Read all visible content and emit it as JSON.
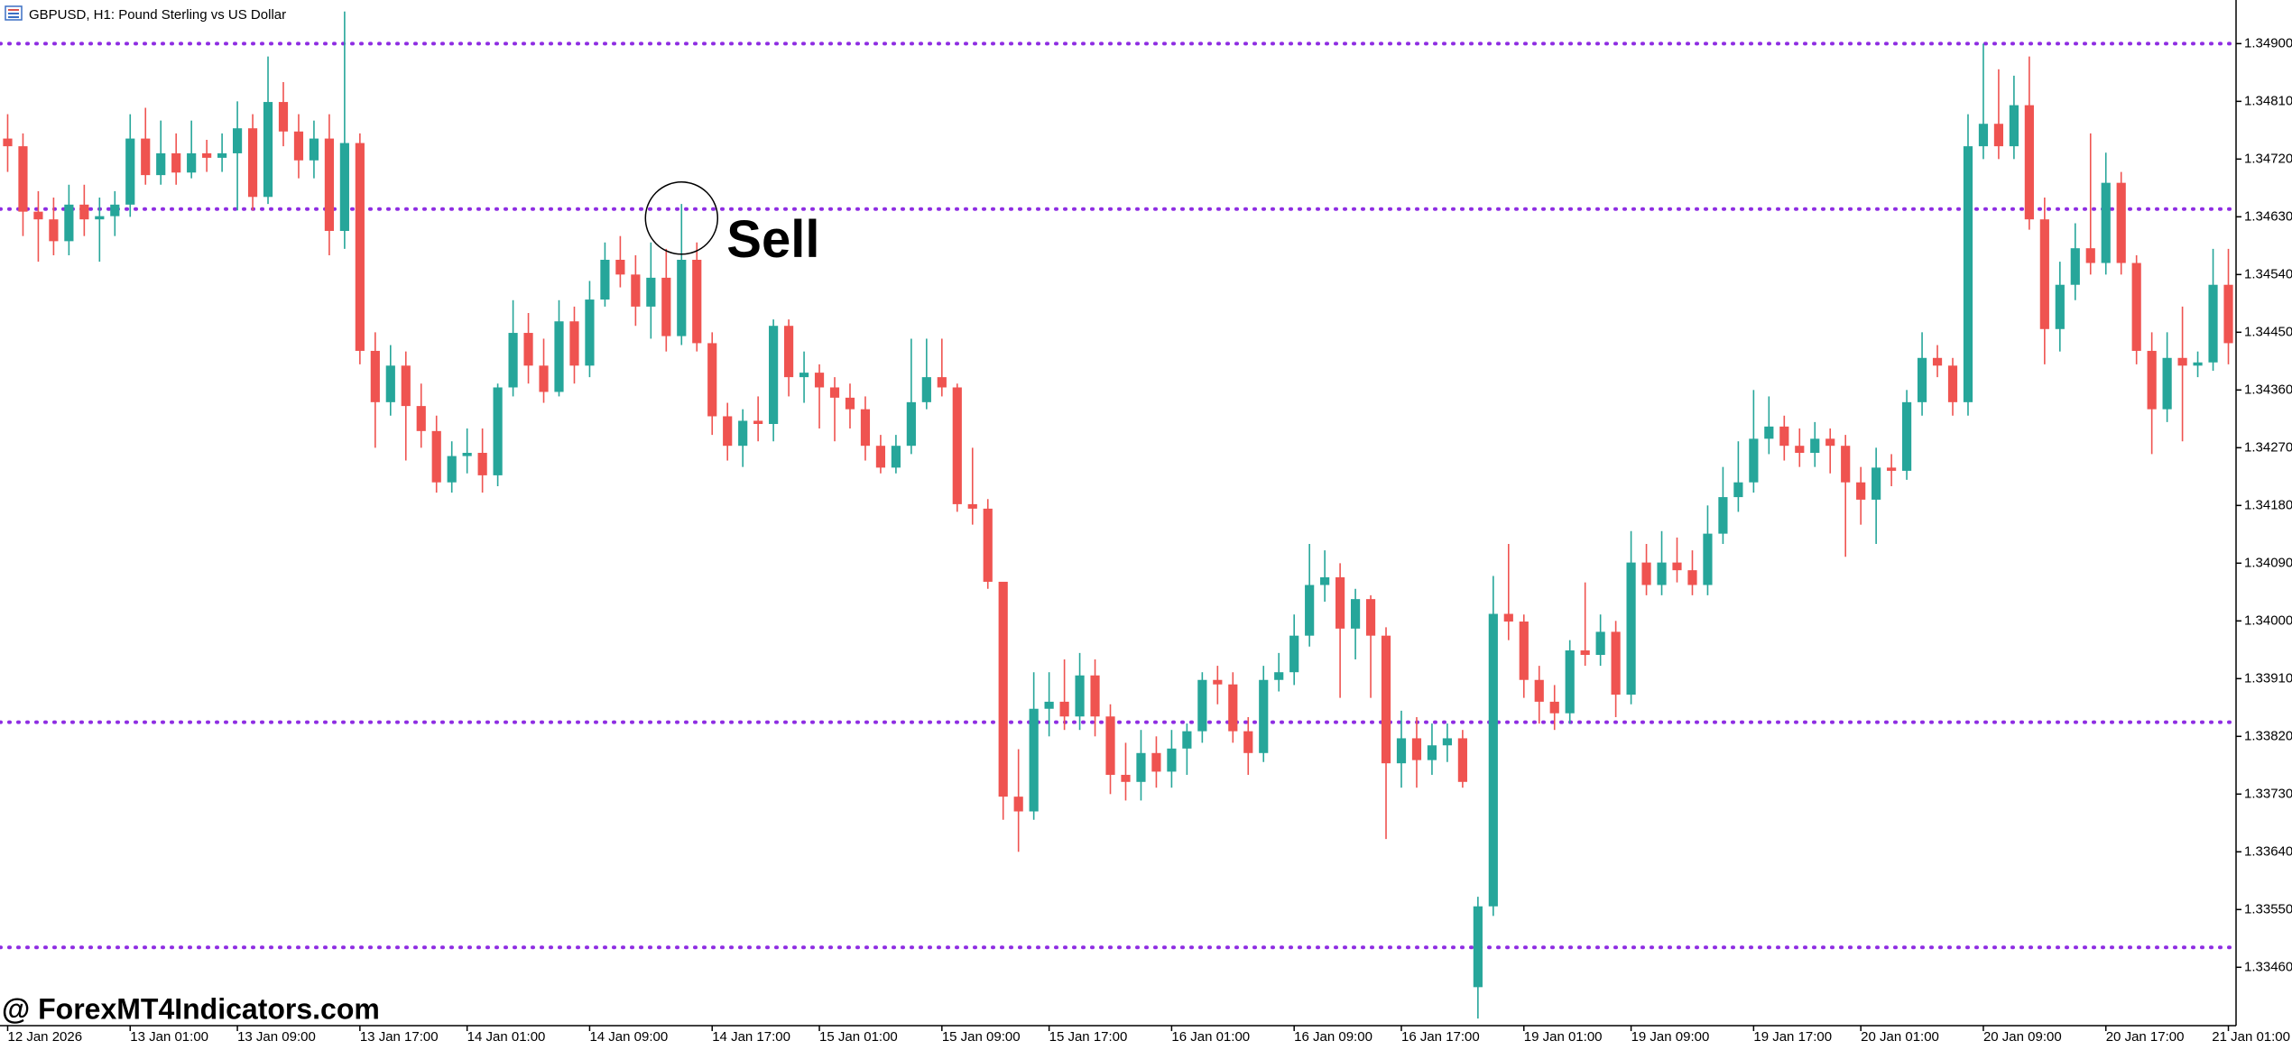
{
  "header": {
    "title": "GBPUSD, H1:  Pound Sterling vs US Dollar"
  },
  "watermark": "@ ForexMT4Indicators.com",
  "chart_data": {
    "type": "candlestick",
    "up_color": "#26a69a",
    "down_color": "#ef5350",
    "ylim": [
      1.33369,
      1.34968
    ],
    "yticks": [
      {
        "value": 1.349,
        "label": "1.34900"
      },
      {
        "value": 1.3481,
        "label": "1.34810"
      },
      {
        "value": 1.3472,
        "label": "1.34720"
      },
      {
        "value": 1.3463,
        "label": "1.34630"
      },
      {
        "value": 1.3454,
        "label": "1.34540"
      },
      {
        "value": 1.3445,
        "label": "1.34450"
      },
      {
        "value": 1.3436,
        "label": "1.34360"
      },
      {
        "value": 1.3427,
        "label": "1.34270"
      },
      {
        "value": 1.3418,
        "label": "1.34180"
      },
      {
        "value": 1.3409,
        "label": "1.34090"
      },
      {
        "value": 1.34,
        "label": "1.34000"
      },
      {
        "value": 1.3391,
        "label": "1.33910"
      },
      {
        "value": 1.3382,
        "label": "1.33820"
      },
      {
        "value": 1.3373,
        "label": "1.33730"
      },
      {
        "value": 1.3364,
        "label": "1.33640"
      },
      {
        "value": 1.3355,
        "label": "1.33550"
      },
      {
        "value": 1.3346,
        "label": "1.33460"
      }
    ],
    "categories": [
      "12 Jan 2026",
      null,
      null,
      null,
      null,
      null,
      null,
      null,
      "13 Jan 01:00",
      null,
      null,
      null,
      null,
      null,
      null,
      "13 Jan 09:00",
      null,
      null,
      null,
      null,
      null,
      null,
      null,
      "13 Jan 17:00",
      null,
      null,
      null,
      null,
      null,
      null,
      "14 Jan 01:00",
      null,
      null,
      null,
      null,
      null,
      null,
      null,
      "14 Jan 09:00",
      null,
      null,
      null,
      null,
      null,
      null,
      null,
      "14 Jan 17:00",
      null,
      null,
      null,
      null,
      null,
      null,
      "15 Jan 01:00",
      null,
      null,
      null,
      null,
      null,
      null,
      null,
      "15 Jan 09:00",
      null,
      null,
      null,
      null,
      null,
      null,
      "15 Jan 17:00",
      null,
      null,
      null,
      null,
      null,
      null,
      null,
      "16 Jan 01:00",
      null,
      null,
      null,
      null,
      null,
      null,
      null,
      "16 Jan 09:00",
      null,
      null,
      null,
      null,
      null,
      null,
      "16 Jan 17:00",
      null,
      null,
      null,
      null,
      null,
      null,
      null,
      "19 Jan 01:00",
      null,
      null,
      null,
      null,
      null,
      null,
      "19 Jan 09:00",
      null,
      null,
      null,
      null,
      null,
      null,
      null,
      "19 Jan 17:00",
      null,
      null,
      null,
      null,
      null,
      null,
      "20 Jan 01:00",
      null,
      null,
      null,
      null,
      null,
      null,
      null,
      "20 Jan 09:00",
      null,
      null,
      null,
      null,
      null,
      null,
      null,
      "20 Jan 17:00",
      null,
      null,
      null,
      null,
      null,
      null,
      null,
      "21 Jan 01:00"
    ],
    "open": [
      1.34752,
      1.3474,
      1.34638,
      1.34626,
      1.34592,
      1.34649,
      1.34626,
      1.34631,
      1.34649,
      1.34752,
      1.34695,
      1.34729,
      1.34699,
      1.34729,
      1.34722,
      1.34729,
      1.34768,
      1.34661,
      1.34809,
      1.34763,
      1.34718,
      1.34752,
      1.34608,
      1.34745,
      1.34421,
      1.34341,
      1.34398,
      1.34335,
      1.34296,
      1.34216,
      1.34257,
      1.34262,
      1.34227,
      1.34364,
      1.34449,
      1.34398,
      1.34357,
      1.34467,
      1.34398,
      1.34501,
      1.34563,
      1.3454,
      1.3449,
      1.34535,
      1.34444,
      1.34563,
      1.34433,
      1.34319,
      1.34273,
      1.34312,
      1.34307,
      1.3446,
      1.3438,
      1.34387,
      1.34364,
      1.34348,
      1.3433,
      1.34273,
      1.34239,
      1.34273,
      1.34341,
      1.3438,
      1.34364,
      1.34182,
      1.34175,
      1.34061,
      1.33726,
      1.33703,
      1.33863,
      1.33874,
      1.33851,
      1.33915,
      1.33851,
      1.3376,
      1.33749,
      1.33794,
      1.33765,
      1.33801,
      1.33828,
      1.33908,
      1.33901,
      1.33828,
      1.33794,
      1.33908,
      1.3392,
      1.33977,
      1.34056,
      1.34068,
      1.33988,
      1.34034,
      1.33977,
      1.33778,
      1.33817,
      1.33783,
      1.33806,
      1.33817,
      1.33429,
      1.33555,
      1.34011,
      1.33999,
      1.33908,
      1.33874,
      1.33856,
      1.33954,
      1.33947,
      1.33983,
      1.33885,
      1.34091,
      1.34056,
      1.34091,
      1.34079,
      1.34056,
      1.34136,
      1.34193,
      1.34216,
      1.34284,
      1.34303,
      1.34273,
      1.34262,
      1.34284,
      1.34273,
      1.34216,
      1.34189,
      1.34239,
      1.34234,
      1.34341,
      1.3441,
      1.34398,
      1.34341,
      1.3474,
      1.34775,
      1.3474,
      1.34804,
      1.34626,
      1.34455,
      1.34524,
      1.34581,
      1.34558,
      1.34683,
      1.34558,
      1.34421,
      1.3433,
      1.3441,
      1.34398,
      1.34403,
      1.34524
    ],
    "high": [
      1.3479,
      1.3476,
      1.3467,
      1.3466,
      1.3468,
      1.3468,
      1.3466,
      1.3467,
      1.3479,
      1.348,
      1.3478,
      1.3476,
      1.3478,
      1.3475,
      1.3476,
      1.3481,
      1.3479,
      1.3488,
      1.3484,
      1.3479,
      1.3478,
      1.3479,
      1.3495,
      1.3476,
      1.3445,
      1.3443,
      1.3442,
      1.3437,
      1.3432,
      1.3428,
      1.343,
      1.343,
      1.3437,
      1.345,
      1.3448,
      1.3444,
      1.345,
      1.3449,
      1.3453,
      1.3459,
      1.346,
      1.3457,
      1.3459,
      1.3458,
      1.3465,
      1.3459,
      1.3445,
      1.3434,
      1.3433,
      1.3435,
      1.3447,
      1.3447,
      1.3442,
      1.344,
      1.3438,
      1.3437,
      1.3435,
      1.3429,
      1.3429,
      1.3444,
      1.3444,
      1.3444,
      1.3437,
      1.3427,
      1.3419,
      1.34061,
      1.338,
      1.3392,
      1.3392,
      1.3394,
      1.3395,
      1.3394,
      1.3387,
      1.3381,
      1.3383,
      1.3382,
      1.3383,
      1.3384,
      1.3392,
      1.3393,
      1.3392,
      1.3385,
      1.3393,
      1.3395,
      1.3401,
      1.3412,
      1.3411,
      1.3409,
      1.3405,
      1.3404,
      1.3399,
      1.3386,
      1.3385,
      1.3384,
      1.3384,
      1.3383,
      1.3357,
      1.3407,
      1.3412,
      1.3401,
      1.3393,
      1.339,
      1.3397,
      1.3406,
      1.3401,
      1.34,
      1.3414,
      1.3412,
      1.3414,
      1.3413,
      1.3411,
      1.3418,
      1.3424,
      1.3428,
      1.3436,
      1.3435,
      1.3432,
      1.343,
      1.3431,
      1.343,
      1.3429,
      1.3424,
      1.3427,
      1.3426,
      1.3436,
      1.3445,
      1.3443,
      1.3441,
      1.3479,
      1.349,
      1.3486,
      1.3485,
      1.3488,
      1.3466,
      1.3456,
      1.3462,
      1.3476,
      1.3473,
      1.347,
      1.3457,
      1.3445,
      1.3445,
      1.3449,
      1.3442,
      1.3458,
      1.3458
    ],
    "low": [
      1.347,
      1.346,
      1.3456,
      1.3457,
      1.3457,
      1.346,
      1.3456,
      1.346,
      1.3463,
      1.3468,
      1.3468,
      1.3468,
      1.3469,
      1.347,
      1.347,
      1.3464,
      1.3464,
      1.3465,
      1.3474,
      1.3469,
      1.3469,
      1.3457,
      1.3458,
      1.344,
      1.3427,
      1.3432,
      1.3425,
      1.3427,
      1.342,
      1.342,
      1.3423,
      1.342,
      1.3421,
      1.3435,
      1.3437,
      1.3434,
      1.3435,
      1.3437,
      1.3438,
      1.3449,
      1.3452,
      1.3446,
      1.3444,
      1.3442,
      1.3443,
      1.3442,
      1.3429,
      1.3425,
      1.3424,
      1.3428,
      1.3428,
      1.3435,
      1.3434,
      1.343,
      1.3428,
      1.343,
      1.3425,
      1.3423,
      1.3423,
      1.3426,
      1.3433,
      1.3435,
      1.3417,
      1.3415,
      1.3405,
      1.3369,
      1.3364,
      1.3369,
      1.3382,
      1.3383,
      1.3383,
      1.3382,
      1.3373,
      1.3372,
      1.3372,
      1.3374,
      1.3374,
      1.3376,
      1.3381,
      1.3387,
      1.3381,
      1.3376,
      1.3378,
      1.3389,
      1.339,
      1.3396,
      1.3403,
      1.3388,
      1.3394,
      1.3388,
      1.3366,
      1.3374,
      1.3374,
      1.3376,
      1.3378,
      1.3374,
      1.3338,
      1.3354,
      1.3397,
      1.3388,
      1.3384,
      1.3383,
      1.3384,
      1.3393,
      1.3393,
      1.3385,
      1.3387,
      1.3404,
      1.3404,
      1.3406,
      1.3404,
      1.3404,
      1.3412,
      1.3417,
      1.342,
      1.3426,
      1.3425,
      1.3424,
      1.3424,
      1.3423,
      1.341,
      1.3415,
      1.3412,
      1.3421,
      1.3422,
      1.3432,
      1.3438,
      1.3432,
      1.3432,
      1.3472,
      1.3472,
      1.3472,
      1.3461,
      1.344,
      1.3442,
      1.345,
      1.3454,
      1.3454,
      1.3454,
      1.344,
      1.3426,
      1.3431,
      1.3428,
      1.3438,
      1.3439,
      1.344
    ],
    "close": [
      1.3474,
      1.34638,
      1.34626,
      1.34592,
      1.34649,
      1.34626,
      1.34631,
      1.34649,
      1.34752,
      1.34695,
      1.34729,
      1.34699,
      1.34729,
      1.34722,
      1.34729,
      1.34768,
      1.34661,
      1.34809,
      1.34763,
      1.34718,
      1.34752,
      1.34608,
      1.34745,
      1.34421,
      1.34341,
      1.34398,
      1.34335,
      1.34296,
      1.34216,
      1.34257,
      1.34262,
      1.34227,
      1.34364,
      1.34449,
      1.34398,
      1.34357,
      1.34467,
      1.34398,
      1.34501,
      1.34563,
      1.3454,
      1.3449,
      1.34535,
      1.34444,
      1.34563,
      1.34433,
      1.34319,
      1.34273,
      1.34312,
      1.34307,
      1.3446,
      1.3438,
      1.34387,
      1.34364,
      1.34348,
      1.3433,
      1.34273,
      1.34239,
      1.34273,
      1.34341,
      1.3438,
      1.34364,
      1.34182,
      1.34175,
      1.34061,
      1.33726,
      1.33703,
      1.33863,
      1.33874,
      1.33851,
      1.33915,
      1.33851,
      1.3376,
      1.33749,
      1.33794,
      1.33765,
      1.33801,
      1.33828,
      1.33908,
      1.33901,
      1.33828,
      1.33794,
      1.33908,
      1.3392,
      1.33977,
      1.34056,
      1.34068,
      1.33988,
      1.34034,
      1.33977,
      1.33778,
      1.33817,
      1.33783,
      1.33806,
      1.33817,
      1.33749,
      1.33555,
      1.34011,
      1.33999,
      1.33908,
      1.33874,
      1.33856,
      1.33954,
      1.33947,
      1.33983,
      1.33885,
      1.34091,
      1.34056,
      1.34091,
      1.34079,
      1.34056,
      1.34136,
      1.34193,
      1.34216,
      1.34284,
      1.34303,
      1.34273,
      1.34262,
      1.34284,
      1.34273,
      1.34216,
      1.34189,
      1.34239,
      1.34234,
      1.34341,
      1.3441,
      1.34398,
      1.34341,
      1.3474,
      1.34775,
      1.3474,
      1.34804,
      1.34626,
      1.34455,
      1.34524,
      1.34581,
      1.34558,
      1.34683,
      1.34558,
      1.34421,
      1.3433,
      1.3441,
      1.34398,
      1.34403,
      1.34524,
      1.34433
    ],
    "levels": {
      "color": "#8e2de2",
      "values": [
        1.349,
        1.34642,
        1.33842,
        1.33491
      ]
    },
    "annotations": [
      {
        "text": "Sell",
        "index": 44,
        "value": 1.34642
      }
    ]
  }
}
